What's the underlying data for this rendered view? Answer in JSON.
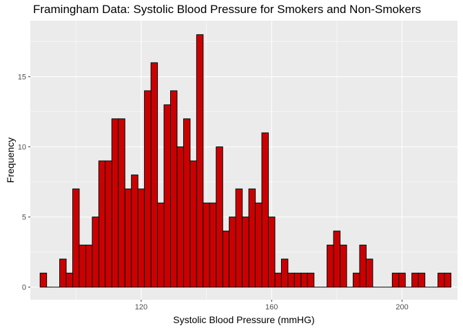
{
  "chart_data": {
    "type": "bar",
    "title": "Framingham Data:  Systolic Blood Pressure for Smokers and Non-Smokers",
    "xlabel": "Systolic Blood Pressure (mmHG)",
    "ylabel": "Frequency",
    "xlim": [
      86,
      217
    ],
    "ylim": [
      -0.9,
      19
    ],
    "x_ticks": [
      120,
      160,
      200
    ],
    "y_ticks": [
      0,
      5,
      10,
      15
    ],
    "bin_width": 2,
    "bins": [
      {
        "x": 90,
        "count": 1
      },
      {
        "x": 92,
        "count": 0
      },
      {
        "x": 94,
        "count": 0
      },
      {
        "x": 96,
        "count": 2
      },
      {
        "x": 98,
        "count": 1
      },
      {
        "x": 100,
        "count": 7
      },
      {
        "x": 102,
        "count": 3
      },
      {
        "x": 104,
        "count": 3
      },
      {
        "x": 106,
        "count": 5
      },
      {
        "x": 108,
        "count": 9
      },
      {
        "x": 110,
        "count": 9
      },
      {
        "x": 112,
        "count": 12
      },
      {
        "x": 114,
        "count": 12
      },
      {
        "x": 116,
        "count": 7
      },
      {
        "x": 118,
        "count": 8
      },
      {
        "x": 120,
        "count": 7
      },
      {
        "x": 122,
        "count": 14
      },
      {
        "x": 124,
        "count": 16
      },
      {
        "x": 126,
        "count": 6
      },
      {
        "x": 128,
        "count": 13
      },
      {
        "x": 130,
        "count": 14
      },
      {
        "x": 132,
        "count": 10
      },
      {
        "x": 134,
        "count": 12
      },
      {
        "x": 136,
        "count": 9
      },
      {
        "x": 138,
        "count": 18
      },
      {
        "x": 140,
        "count": 6
      },
      {
        "x": 142,
        "count": 6
      },
      {
        "x": 144,
        "count": 10
      },
      {
        "x": 146,
        "count": 4
      },
      {
        "x": 148,
        "count": 5
      },
      {
        "x": 150,
        "count": 7
      },
      {
        "x": 152,
        "count": 5
      },
      {
        "x": 154,
        "count": 7
      },
      {
        "x": 156,
        "count": 6
      },
      {
        "x": 158,
        "count": 11
      },
      {
        "x": 160,
        "count": 5
      },
      {
        "x": 162,
        "count": 1
      },
      {
        "x": 164,
        "count": 2
      },
      {
        "x": 166,
        "count": 1
      },
      {
        "x": 168,
        "count": 1
      },
      {
        "x": 170,
        "count": 1
      },
      {
        "x": 172,
        "count": 1
      },
      {
        "x": 174,
        "count": 0
      },
      {
        "x": 176,
        "count": 0
      },
      {
        "x": 178,
        "count": 3
      },
      {
        "x": 180,
        "count": 4
      },
      {
        "x": 182,
        "count": 3
      },
      {
        "x": 184,
        "count": 0
      },
      {
        "x": 186,
        "count": 1
      },
      {
        "x": 188,
        "count": 3
      },
      {
        "x": 190,
        "count": 2
      },
      {
        "x": 192,
        "count": 0
      },
      {
        "x": 194,
        "count": 0
      },
      {
        "x": 196,
        "count": 0
      },
      {
        "x": 198,
        "count": 1
      },
      {
        "x": 200,
        "count": 1
      },
      {
        "x": 202,
        "count": 0
      },
      {
        "x": 204,
        "count": 1
      },
      {
        "x": 206,
        "count": 1
      },
      {
        "x": 208,
        "count": 0
      },
      {
        "x": 210,
        "count": 0
      },
      {
        "x": 212,
        "count": 1
      },
      {
        "x": 214,
        "count": 1
      }
    ],
    "grid": true,
    "colors": {
      "bar_fill": "#cc0000",
      "bar_outline": "#000000",
      "panel_background": "#ebebeb",
      "grid_major": "#ffffff"
    }
  }
}
